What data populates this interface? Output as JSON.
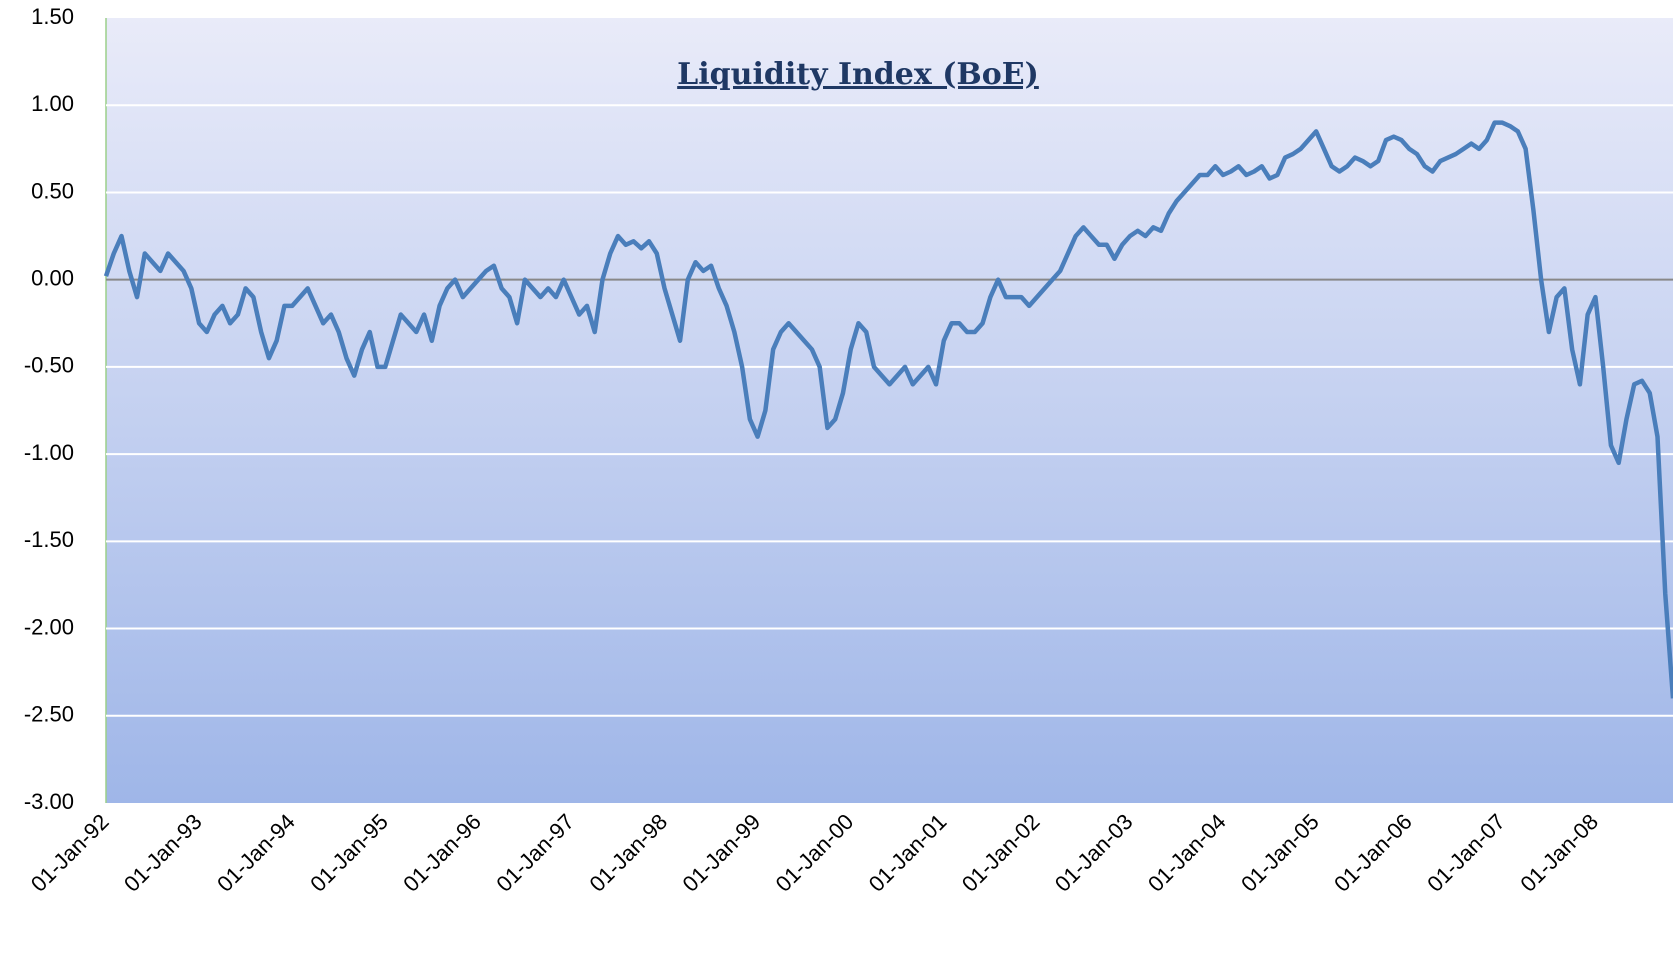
{
  "chart_data": {
    "type": "line",
    "title": "Liquidity Index (BoE)",
    "categories": [
      "01-Jan-92",
      null,
      null,
      null,
      null,
      null,
      null,
      null,
      null,
      null,
      null,
      null,
      "01-Jan-93",
      null,
      null,
      null,
      null,
      null,
      null,
      null,
      null,
      null,
      null,
      null,
      "01-Jan-94",
      null,
      null,
      null,
      null,
      null,
      null,
      null,
      null,
      null,
      null,
      null,
      "01-Jan-95",
      null,
      null,
      null,
      null,
      null,
      null,
      null,
      null,
      null,
      null,
      null,
      "01-Jan-96",
      null,
      null,
      null,
      null,
      null,
      null,
      null,
      null,
      null,
      null,
      null,
      "01-Jan-97",
      null,
      null,
      null,
      null,
      null,
      null,
      null,
      null,
      null,
      null,
      null,
      "01-Jan-98",
      null,
      null,
      null,
      null,
      null,
      null,
      null,
      null,
      null,
      null,
      null,
      "01-Jan-99",
      null,
      null,
      null,
      null,
      null,
      null,
      null,
      null,
      null,
      null,
      null,
      "01-Jan-00",
      null,
      null,
      null,
      null,
      null,
      null,
      null,
      null,
      null,
      null,
      null,
      "01-Jan-01",
      null,
      null,
      null,
      null,
      null,
      null,
      null,
      null,
      null,
      null,
      null,
      "01-Jan-02",
      null,
      null,
      null,
      null,
      null,
      null,
      null,
      null,
      null,
      null,
      null,
      "01-Jan-03",
      null,
      null,
      null,
      null,
      null,
      null,
      null,
      null,
      null,
      null,
      null,
      "01-Jan-04",
      null,
      null,
      null,
      null,
      null,
      null,
      null,
      null,
      null,
      null,
      null,
      "01-Jan-05",
      null,
      null,
      null,
      null,
      null,
      null,
      null,
      null,
      null,
      null,
      null,
      "01-Jan-06",
      null,
      null,
      null,
      null,
      null,
      null,
      null,
      null,
      null,
      null,
      null,
      "01-Jan-07",
      null,
      null,
      null,
      null,
      null,
      null,
      null,
      null,
      null,
      null,
      null,
      "01-Jan-08",
      null,
      null,
      null,
      null,
      null,
      null,
      null,
      null,
      null,
      null
    ],
    "series": [
      {
        "name": "Liquidity Index",
        "color": "#4a7ebb",
        "values": [
          0.02,
          0.15,
          0.25,
          0.05,
          -0.1,
          0.15,
          0.1,
          0.05,
          0.15,
          0.1,
          0.05,
          -0.05,
          -0.25,
          -0.3,
          -0.2,
          -0.15,
          -0.25,
          -0.2,
          -0.05,
          -0.1,
          -0.3,
          -0.45,
          -0.35,
          -0.15,
          -0.15,
          -0.1,
          -0.05,
          -0.15,
          -0.25,
          -0.2,
          -0.3,
          -0.45,
          -0.55,
          -0.4,
          -0.3,
          -0.5,
          -0.5,
          -0.35,
          -0.2,
          -0.25,
          -0.3,
          -0.2,
          -0.35,
          -0.15,
          -0.05,
          0.0,
          -0.1,
          -0.05,
          0.0,
          0.05,
          0.08,
          -0.05,
          -0.1,
          -0.25,
          0.0,
          -0.05,
          -0.1,
          -0.05,
          -0.1,
          0.0,
          -0.1,
          -0.2,
          -0.15,
          -0.3,
          0.0,
          0.15,
          0.25,
          0.2,
          0.22,
          0.18,
          0.22,
          0.15,
          -0.05,
          -0.2,
          -0.35,
          0.0,
          0.1,
          0.05,
          0.08,
          -0.05,
          -0.15,
          -0.3,
          -0.5,
          -0.8,
          -0.9,
          -0.75,
          -0.4,
          -0.3,
          -0.25,
          -0.3,
          -0.35,
          -0.4,
          -0.5,
          -0.85,
          -0.8,
          -0.65,
          -0.4,
          -0.25,
          -0.3,
          -0.5,
          -0.55,
          -0.6,
          -0.55,
          -0.5,
          -0.6,
          -0.55,
          -0.5,
          -0.6,
          -0.35,
          -0.25,
          -0.25,
          -0.3,
          -0.3,
          -0.25,
          -0.1,
          0.0,
          -0.1,
          -0.1,
          -0.1,
          -0.15,
          -0.1,
          -0.05,
          0.0,
          0.05,
          0.15,
          0.25,
          0.3,
          0.25,
          0.2,
          0.2,
          0.12,
          0.2,
          0.25,
          0.28,
          0.25,
          0.3,
          0.28,
          0.38,
          0.45,
          0.5,
          0.55,
          0.6,
          0.6,
          0.65,
          0.6,
          0.62,
          0.65,
          0.6,
          0.62,
          0.65,
          0.58,
          0.6,
          0.7,
          0.72,
          0.75,
          0.8,
          0.85,
          0.75,
          0.65,
          0.62,
          0.65,
          0.7,
          0.68,
          0.65,
          0.68,
          0.8,
          0.82,
          0.8,
          0.75,
          0.72,
          0.65,
          0.62,
          0.68,
          0.7,
          0.72,
          0.75,
          0.78,
          0.75,
          0.8,
          0.9,
          0.9,
          0.88,
          0.85,
          0.75,
          0.4,
          0.0,
          -0.3,
          -0.1,
          -0.05,
          -0.4,
          -0.6,
          -0.2,
          -0.1,
          -0.5,
          -0.95,
          -1.05,
          -0.8,
          -0.6,
          -0.58,
          -0.65,
          -0.9,
          -1.8,
          -2.4
        ]
      }
    ],
    "ylim": [
      -3,
      1.5
    ],
    "yticks": [
      {
        "value": -3,
        "label": "-3.00"
      },
      {
        "value": -2.5,
        "label": "-2.50"
      },
      {
        "value": -2,
        "label": "-2.00"
      },
      {
        "value": -1.5,
        "label": "-1.50"
      },
      {
        "value": -1,
        "label": "-1.00"
      },
      {
        "value": -0.5,
        "label": "-0.50"
      },
      {
        "value": 0,
        "label": "0.00"
      },
      {
        "value": 0.5,
        "label": "0.50"
      },
      {
        "value": 1,
        "label": "1.00"
      },
      {
        "value": 1.5,
        "label": "1.50"
      }
    ],
    "grid": true
  }
}
